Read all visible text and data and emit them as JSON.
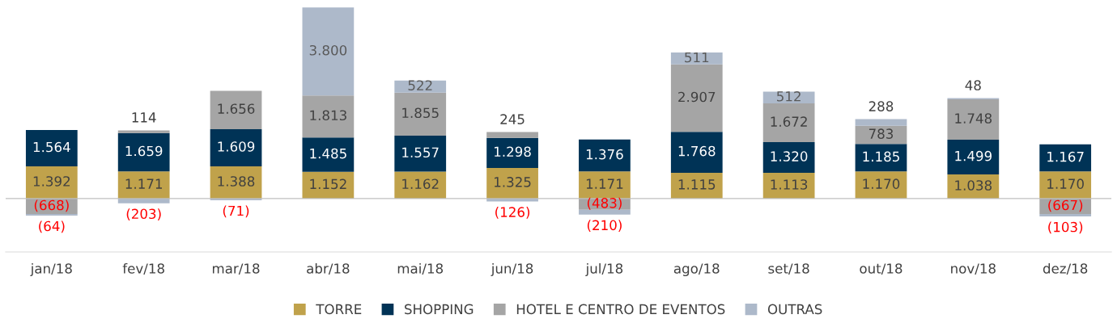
{
  "chart_data": {
    "type": "bar",
    "stacked": true,
    "legend": "bottom",
    "grid": false,
    "tick_labels": "x",
    "categories": [
      "jan/18",
      "fev/18",
      "mar/18",
      "abr/18",
      "mai/18",
      "jun/18",
      "jul/18",
      "ago/18",
      "set/18",
      "out/18",
      "nov/18",
      "dez/18"
    ],
    "series": [
      {
        "name": "TORRE",
        "color": "#c0a24b",
        "values": [
          1392,
          1171,
          1388,
          1152,
          1162,
          1325,
          1171,
          1115,
          1113,
          1170,
          1038,
          1170
        ],
        "value_labels": [
          "1.392",
          "1.171",
          "1.388",
          "1.152",
          "1.162",
          "1.325",
          "1.171",
          "1.115",
          "1.113",
          "1.170",
          "1.038",
          "1.170"
        ]
      },
      {
        "name": "SHOPPING",
        "color": "#003356",
        "values": [
          1564,
          1659,
          1609,
          1485,
          1557,
          1298,
          1376,
          1768,
          1320,
          1185,
          1499,
          1167
        ],
        "value_labels": [
          "1.564",
          "1.659",
          "1.609",
          "1.485",
          "1.557",
          "1.298",
          "1.376",
          "1.768",
          "1.320",
          "1.185",
          "1.499",
          "1.167"
        ]
      },
      {
        "name": "HOTEL E CENTRO DE EVENTOS",
        "color": "#a5a5a5",
        "values": [
          -668,
          114,
          1656,
          1813,
          1855,
          245,
          -483,
          2907,
          1672,
          783,
          1748,
          -667
        ],
        "value_labels": [
          "(668)",
          "114",
          "1.656",
          "1.813",
          "1.855",
          "245",
          "(483)",
          "2.907",
          "1.672",
          "783",
          "1.748",
          "(667)"
        ]
      },
      {
        "name": "OUTRAS",
        "color": "#adb9ca",
        "values": [
          -64,
          -203,
          -71,
          3800,
          522,
          -126,
          -210,
          511,
          512,
          288,
          48,
          -103
        ],
        "value_labels": [
          "(64)",
          "(203)",
          "(71)",
          "3.800",
          "522",
          "(126)",
          "(210)",
          "511",
          "512",
          "288",
          "48",
          "(103)"
        ]
      }
    ]
  }
}
